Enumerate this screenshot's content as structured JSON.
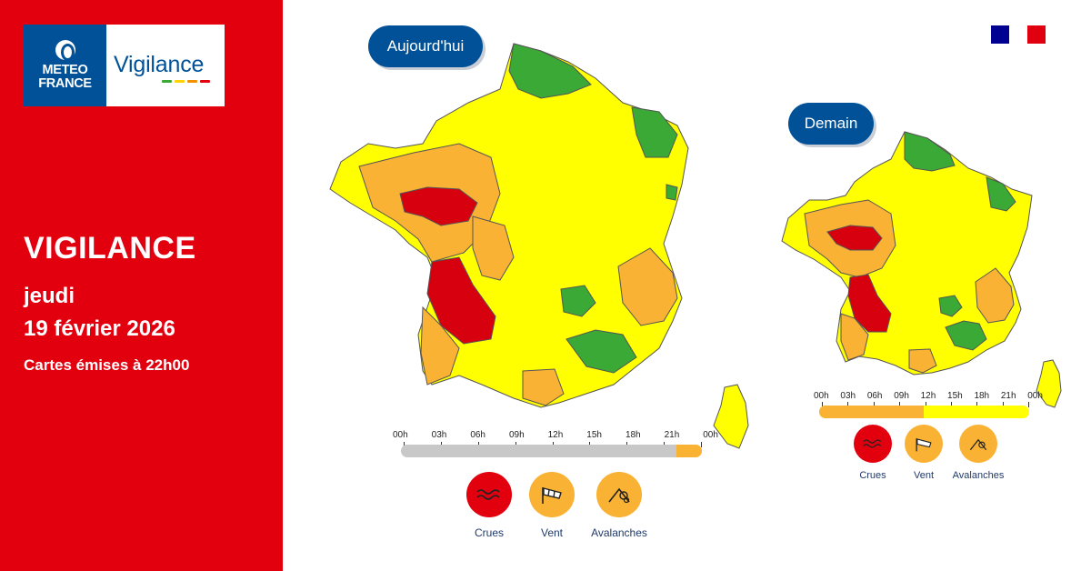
{
  "brand": {
    "meteo_line1": "METEO",
    "meteo_line2": "FRANCE",
    "vigilance": "Vigilance",
    "bar_colors": [
      "#3aa935",
      "#ffd200",
      "#f29100",
      "#e2000f"
    ]
  },
  "left": {
    "title": "VIGILANCE",
    "day": "jeudi",
    "date": "19 février 2026",
    "issued": "Cartes émises à 22h00"
  },
  "today": {
    "label": "Aujourd'hui",
    "hours": [
      "00h",
      "03h",
      "06h",
      "09h",
      "12h",
      "15h",
      "18h",
      "21h",
      "00h"
    ],
    "timeline_level_by_hour": "grey until 22h, orange 22h-24h",
    "legend": [
      {
        "label": "Crues",
        "icon": "waves-icon",
        "color": "#e2000f"
      },
      {
        "label": "Vent",
        "icon": "windsock-icon",
        "color": "#f9b233"
      },
      {
        "label": "Avalanches",
        "icon": "avalanche-icon",
        "color": "#f9b233"
      }
    ]
  },
  "tomorrow": {
    "label": "Demain",
    "hours": [
      "00h",
      "03h",
      "06h",
      "09h",
      "12h",
      "15h",
      "18h",
      "21h",
      "00h"
    ],
    "legend": [
      {
        "label": "Crues",
        "icon": "waves-icon",
        "color": "#e2000f"
      },
      {
        "label": "Vent",
        "icon": "windsock-icon",
        "color": "#f9b233"
      },
      {
        "label": "Avalanches",
        "icon": "avalanche-icon",
        "color": "#f9b233"
      }
    ]
  },
  "colors": {
    "red": "#d7000f",
    "orange": "#f9b233",
    "yellow": "#ffff00",
    "green": "#3aa935",
    "grey": "#c8c8c8",
    "navy": "#005198",
    "flag_blue": "#000091",
    "flag_red": "#e1000f"
  }
}
